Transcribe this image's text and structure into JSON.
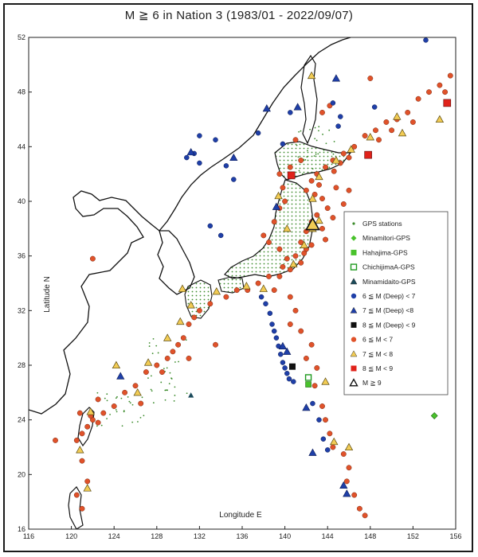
{
  "title": "M ≧ 6 in Nation 3 (1983/01 - 2022/09/07)",
  "axes": {
    "x_label": "Longitude E",
    "y_label": "Latitude N",
    "x_ticks": [
      116,
      120,
      124,
      128,
      132,
      136,
      140,
      144,
      148,
      152,
      156
    ],
    "y_ticks": [
      16,
      20,
      24,
      28,
      32,
      36,
      40,
      44,
      48,
      52
    ],
    "x_range": [
      116,
      156
    ],
    "y_range": [
      16,
      52
    ]
  },
  "legend": {
    "placement": "right-middle",
    "items": [
      {
        "label": "GPS stations",
        "symbol": "dot",
        "color": "#3a8a2a"
      },
      {
        "label": "Minamitori-GPS",
        "symbol": "diamond",
        "color": "#49c22c"
      },
      {
        "label": "Hahajima-GPS",
        "symbol": "square",
        "color": "#49c22c"
      },
      {
        "label": "ChichijimaA-GPS",
        "symbol": "square-open",
        "color": "#1f9a1f"
      },
      {
        "label": "Minamidaito-GPS",
        "symbol": "triangle",
        "color": "#1a4a5a"
      },
      {
        "label": "6 ≦ M (Deep) < 7",
        "symbol": "circle",
        "color": "#1f3fa8"
      },
      {
        "label": "7 ≦ M (Deep) <8",
        "symbol": "triangle",
        "color": "#1f3fa8"
      },
      {
        "label": "8 ≦ M (Deep) < 9",
        "symbol": "square",
        "color": "#111111"
      },
      {
        "label": "6 ≦ M < 7",
        "symbol": "circle",
        "color": "#e0522a"
      },
      {
        "label": "7 ≦ M < 8",
        "symbol": "triangle",
        "color": "#f2cc55"
      },
      {
        "label": "8 ≦ M < 9",
        "symbol": "square",
        "color": "#e0221a"
      },
      {
        "label": "M ≧ 9",
        "symbol": "triangle-open",
        "color": "#ffffff"
      }
    ]
  },
  "map_data": {
    "type": "scatter-map",
    "special_stations": [
      {
        "name": "Minamitori-GPS",
        "lon": 154.0,
        "lat": 24.3
      },
      {
        "name": "Hahajima-GPS",
        "lon": 142.2,
        "lat": 26.6
      },
      {
        "name": "ChichijimaA-GPS",
        "lon": 142.2,
        "lat": 27.1
      },
      {
        "name": "Minamidaito-GPS",
        "lon": 131.2,
        "lat": 25.8
      }
    ],
    "events_shallow_6_7": [
      [
        151.5,
        46.5
      ],
      [
        150.5,
        46.0
      ],
      [
        149.5,
        45.8
      ],
      [
        148.5,
        45.2
      ],
      [
        147.5,
        44.8
      ],
      [
        146.5,
        44.0
      ],
      [
        145.5,
        43.5
      ],
      [
        144.5,
        43.0
      ],
      [
        143.8,
        42.5
      ],
      [
        143.0,
        42.0
      ],
      [
        142.5,
        41.5
      ],
      [
        142.0,
        40.8
      ],
      [
        143.5,
        40.2
      ],
      [
        144.0,
        39.5
      ],
      [
        143.0,
        39.0
      ],
      [
        142.5,
        38.5
      ],
      [
        143.5,
        38.0
      ],
      [
        142.0,
        37.8
      ],
      [
        141.5,
        37.0
      ],
      [
        142.0,
        36.5
      ],
      [
        141.0,
        36.0
      ],
      [
        141.5,
        35.5
      ],
      [
        140.5,
        35.0
      ],
      [
        139.5,
        34.5
      ],
      [
        138.5,
        34.5
      ],
      [
        137.5,
        34.0
      ],
      [
        136.5,
        33.5
      ],
      [
        135.5,
        33.5
      ],
      [
        134.5,
        33.0
      ],
      [
        133.0,
        32.5
      ],
      [
        132.0,
        32.0
      ],
      [
        131.5,
        31.5
      ],
      [
        131.0,
        31.0
      ],
      [
        130.5,
        30.0
      ],
      [
        130.0,
        29.5
      ],
      [
        129.5,
        29.0
      ],
      [
        129.0,
        28.5
      ],
      [
        128.0,
        28.0
      ],
      [
        127.0,
        27.5
      ],
      [
        126.0,
        26.5
      ],
      [
        125.0,
        26.0
      ],
      [
        124.0,
        25.0
      ],
      [
        123.0,
        24.5
      ],
      [
        122.0,
        24.0
      ],
      [
        121.5,
        23.5
      ],
      [
        121.0,
        23.0
      ],
      [
        120.5,
        22.5
      ],
      [
        121.0,
        21.0
      ],
      [
        121.5,
        19.5
      ],
      [
        120.5,
        18.5
      ],
      [
        121.0,
        17.5
      ],
      [
        122.5,
        25.5
      ],
      [
        122.5,
        23.8
      ],
      [
        121.8,
        24.3
      ],
      [
        120.8,
        24.5
      ],
      [
        118.5,
        22.5
      ],
      [
        122.0,
        35.8
      ],
      [
        152.5,
        47.5
      ],
      [
        153.5,
        48.0
      ],
      [
        154.5,
        48.5
      ],
      [
        155.5,
        49.2
      ],
      [
        155.0,
        48.0
      ],
      [
        152.0,
        45.8
      ],
      [
        150.0,
        45.2
      ],
      [
        148.8,
        44.5
      ],
      [
        146.0,
        43.2
      ],
      [
        145.2,
        42.8
      ],
      [
        144.6,
        42.2
      ],
      [
        143.2,
        41.2
      ],
      [
        142.8,
        40.5
      ],
      [
        144.8,
        41.0
      ],
      [
        146.0,
        40.8
      ],
      [
        145.5,
        39.8
      ],
      [
        144.5,
        38.8
      ],
      [
        143.8,
        37.2
      ],
      [
        142.5,
        36.8
      ],
      [
        141.8,
        36.2
      ],
      [
        140.2,
        35.8
      ],
      [
        139.8,
        35.2
      ],
      [
        139.0,
        33.5
      ],
      [
        140.5,
        33.0
      ],
      [
        141.0,
        32.0
      ],
      [
        140.5,
        31.0
      ],
      [
        141.5,
        30.5
      ],
      [
        142.5,
        29.5
      ],
      [
        142.0,
        28.5
      ],
      [
        143.0,
        27.8
      ],
      [
        142.8,
        26.5
      ],
      [
        143.5,
        25.0
      ],
      [
        143.8,
        24.0
      ],
      [
        144.2,
        23.0
      ],
      [
        144.5,
        22.0
      ],
      [
        145.5,
        21.5
      ],
      [
        146.0,
        20.5
      ],
      [
        145.8,
        19.5
      ],
      [
        146.5,
        18.5
      ],
      [
        147.0,
        17.5
      ],
      [
        147.5,
        17.0
      ],
      [
        139.5,
        36.5
      ],
      [
        138.5,
        37.0
      ],
      [
        138.0,
        37.5
      ],
      [
        139.0,
        38.5
      ],
      [
        139.5,
        39.5
      ],
      [
        140.0,
        40.0
      ],
      [
        139.8,
        41.0
      ],
      [
        139.5,
        42.0
      ],
      [
        140.5,
        42.5
      ],
      [
        141.5,
        43.0
      ],
      [
        141.0,
        44.5
      ],
      [
        148.0,
        49.0
      ],
      [
        144.2,
        47.0
      ],
      [
        143.5,
        46.5
      ],
      [
        126.5,
        25.2
      ],
      [
        128.5,
        27.5
      ],
      [
        131.0,
        28.5
      ],
      [
        133.5,
        29.5
      ]
    ],
    "events_shallow_7_8": [
      [
        150.5,
        46.2
      ],
      [
        148.0,
        44.7
      ],
      [
        146.2,
        43.8
      ],
      [
        144.8,
        43.0
      ],
      [
        143.2,
        41.8
      ],
      [
        142.6,
        40.2
      ],
      [
        143.2,
        38.6
      ],
      [
        142.6,
        38.0
      ],
      [
        141.8,
        36.8
      ],
      [
        138.0,
        33.6
      ],
      [
        136.4,
        33.8
      ],
      [
        133.6,
        33.4
      ],
      [
        131.2,
        32.4
      ],
      [
        130.4,
        33.6
      ],
      [
        130.2,
        31.2
      ],
      [
        129.0,
        30.0
      ],
      [
        127.2,
        28.2
      ],
      [
        126.2,
        26.0
      ],
      [
        121.8,
        24.6
      ],
      [
        120.8,
        21.8
      ],
      [
        121.5,
        19.0
      ],
      [
        143.8,
        26.8
      ],
      [
        144.6,
        22.4
      ],
      [
        146.0,
        22.0
      ],
      [
        140.2,
        38.0
      ],
      [
        139.4,
        40.4
      ],
      [
        140.8,
        35.4
      ],
      [
        151.0,
        45.0
      ],
      [
        154.5,
        46.0
      ],
      [
        142.5,
        49.2
      ],
      [
        124.2,
        28.0
      ]
    ],
    "events_shallow_8_9": [
      [
        147.8,
        43.4
      ],
      [
        140.6,
        41.9
      ],
      [
        155.2,
        47.2
      ]
    ],
    "events_m9": [
      [
        142.6,
        38.3
      ]
    ],
    "events_deep_6_7": [
      [
        138.6,
        31.8
      ],
      [
        138.8,
        31.0
      ],
      [
        139.0,
        30.5
      ],
      [
        139.2,
        30.0
      ],
      [
        139.4,
        29.4
      ],
      [
        139.6,
        28.8
      ],
      [
        139.8,
        28.2
      ],
      [
        140.0,
        27.8
      ],
      [
        140.2,
        27.4
      ],
      [
        140.4,
        27.0
      ],
      [
        138.2,
        32.5
      ],
      [
        137.8,
        33.0
      ],
      [
        140.8,
        26.8
      ],
      [
        142.6,
        25.2
      ],
      [
        143.2,
        24.0
      ],
      [
        143.6,
        22.6
      ],
      [
        144.0,
        21.8
      ],
      [
        131.5,
        43.5
      ],
      [
        130.8,
        43.2
      ],
      [
        132.0,
        42.8
      ],
      [
        134.5,
        42.6
      ],
      [
        135.2,
        41.6
      ],
      [
        133.5,
        44.5
      ],
      [
        132.0,
        44.8
      ],
      [
        133.0,
        38.2
      ],
      [
        134.0,
        37.5
      ],
      [
        140.5,
        46.5
      ],
      [
        144.5,
        47.2
      ],
      [
        145.2,
        46.2
      ],
      [
        148.4,
        46.9
      ],
      [
        153.2,
        51.8
      ],
      [
        145.0,
        45.5
      ],
      [
        139.8,
        44.2
      ],
      [
        137.5,
        45.0
      ]
    ],
    "events_deep_7_8": [
      [
        131.2,
        43.6
      ],
      [
        135.2,
        43.2
      ],
      [
        138.3,
        46.8
      ],
      [
        141.2,
        46.9
      ],
      [
        144.8,
        49.0
      ],
      [
        145.5,
        19.2
      ],
      [
        145.8,
        18.6
      ],
      [
        140.2,
        29.0
      ],
      [
        139.8,
        29.4
      ],
      [
        142.0,
        24.9
      ],
      [
        142.6,
        21.6
      ],
      [
        124.6,
        27.2
      ],
      [
        139.2,
        39.6
      ]
    ],
    "events_deep_8_9": [
      [
        140.7,
        27.9
      ]
    ]
  }
}
